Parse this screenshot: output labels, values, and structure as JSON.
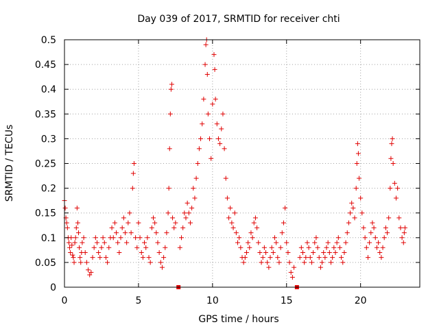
{
  "chart_data": {
    "type": "scatter",
    "title": "Day 039 of 2017, SRMTID for receiver chti",
    "xlabel": "GPS time / hours",
    "ylabel": "SRMTID / TECUs",
    "xlim": [
      0,
      24
    ],
    "ylim": [
      0,
      0.5
    ],
    "x_ticks": [
      0,
      5,
      10,
      15,
      20
    ],
    "x_tick_labels": [
      "0",
      "5",
      "10",
      "15",
      "20"
    ],
    "y_ticks": [
      0,
      0.05,
      0.1,
      0.15,
      0.2,
      0.25,
      0.3,
      0.35,
      0.4,
      0.45,
      0.5
    ],
    "y_tick_labels": [
      "0",
      "0.05",
      "0.1",
      "0.15",
      "0.2",
      "0.25",
      "0.3",
      "0.35",
      "0.4",
      "0.45",
      "0.5"
    ],
    "grid": true,
    "marker": "plus",
    "color": "#e00000",
    "gap_markers_x": [
      7.7,
      15.7
    ],
    "series": [
      {
        "name": "SRMTID",
        "points": [
          [
            0.0,
            0.175
          ],
          [
            0.05,
            0.16
          ],
          [
            0.1,
            0.14
          ],
          [
            0.15,
            0.13
          ],
          [
            0.2,
            0.12
          ],
          [
            0.25,
            0.1
          ],
          [
            0.3,
            0.09
          ],
          [
            0.35,
            0.08
          ],
          [
            0.4,
            0.07
          ],
          [
            0.45,
            0.1
          ],
          [
            0.5,
            0.085
          ],
          [
            0.55,
            0.065
          ],
          [
            0.6,
            0.06
          ],
          [
            0.65,
            0.05
          ],
          [
            0.7,
            0.09
          ],
          [
            0.75,
            0.1
          ],
          [
            0.8,
            0.12
          ],
          [
            0.85,
            0.16
          ],
          [
            0.9,
            0.13
          ],
          [
            0.95,
            0.11
          ],
          [
            1.0,
            0.08
          ],
          [
            1.05,
            0.06
          ],
          [
            1.1,
            0.05
          ],
          [
            1.15,
            0.07
          ],
          [
            1.2,
            0.09
          ],
          [
            1.3,
            0.1
          ],
          [
            1.4,
            0.07
          ],
          [
            1.5,
            0.05
          ],
          [
            1.6,
            0.035
          ],
          [
            1.7,
            0.025
          ],
          [
            1.8,
            0.03
          ],
          [
            1.9,
            0.06
          ],
          [
            2.0,
            0.08
          ],
          [
            2.1,
            0.1
          ],
          [
            2.2,
            0.09
          ],
          [
            2.3,
            0.07
          ],
          [
            2.4,
            0.06
          ],
          [
            2.5,
            0.08
          ],
          [
            2.6,
            0.1
          ],
          [
            2.7,
            0.09
          ],
          [
            2.8,
            0.06
          ],
          [
            2.9,
            0.05
          ],
          [
            3.0,
            0.08
          ],
          [
            3.1,
            0.1
          ],
          [
            3.2,
            0.12
          ],
          [
            3.3,
            0.1
          ],
          [
            3.4,
            0.13
          ],
          [
            3.5,
            0.11
          ],
          [
            3.6,
            0.09
          ],
          [
            3.7,
            0.07
          ],
          [
            3.8,
            0.1
          ],
          [
            3.9,
            0.12
          ],
          [
            4.0,
            0.14
          ],
          [
            4.1,
            0.11
          ],
          [
            4.2,
            0.09
          ],
          [
            4.3,
            0.13
          ],
          [
            4.4,
            0.15
          ],
          [
            4.5,
            0.11
          ],
          [
            4.6,
            0.2
          ],
          [
            4.65,
            0.23
          ],
          [
            4.7,
            0.25
          ],
          [
            4.8,
            0.1
          ],
          [
            4.9,
            0.08
          ],
          [
            5.0,
            0.13
          ],
          [
            5.1,
            0.1
          ],
          [
            5.2,
            0.07
          ],
          [
            5.3,
            0.06
          ],
          [
            5.4,
            0.09
          ],
          [
            5.5,
            0.08
          ],
          [
            5.6,
            0.1
          ],
          [
            5.7,
            0.06
          ],
          [
            5.8,
            0.05
          ],
          [
            5.9,
            0.12
          ],
          [
            6.0,
            0.14
          ],
          [
            6.1,
            0.13
          ],
          [
            6.2,
            0.11
          ],
          [
            6.3,
            0.09
          ],
          [
            6.4,
            0.07
          ],
          [
            6.5,
            0.05
          ],
          [
            6.6,
            0.04
          ],
          [
            6.7,
            0.06
          ],
          [
            6.8,
            0.08
          ],
          [
            6.9,
            0.11
          ],
          [
            7.0,
            0.15
          ],
          [
            7.05,
            0.2
          ],
          [
            7.1,
            0.28
          ],
          [
            7.15,
            0.35
          ],
          [
            7.2,
            0.4
          ],
          [
            7.25,
            0.41
          ],
          [
            7.3,
            0.14
          ],
          [
            7.4,
            0.12
          ],
          [
            7.5,
            0.13
          ],
          [
            7.8,
            0.08
          ],
          [
            7.9,
            0.1
          ],
          [
            8.0,
            0.12
          ],
          [
            8.1,
            0.15
          ],
          [
            8.2,
            0.14
          ],
          [
            8.3,
            0.17
          ],
          [
            8.4,
            0.15
          ],
          [
            8.5,
            0.13
          ],
          [
            8.6,
            0.16
          ],
          [
            8.7,
            0.2
          ],
          [
            8.8,
            0.18
          ],
          [
            8.9,
            0.22
          ],
          [
            9.0,
            0.25
          ],
          [
            9.1,
            0.28
          ],
          [
            9.2,
            0.3
          ],
          [
            9.3,
            0.33
          ],
          [
            9.4,
            0.38
          ],
          [
            9.5,
            0.45
          ],
          [
            9.55,
            0.49
          ],
          [
            9.6,
            0.5
          ],
          [
            9.65,
            0.43
          ],
          [
            9.7,
            0.35
          ],
          [
            9.8,
            0.3
          ],
          [
            9.9,
            0.26
          ],
          [
            10.0,
            0.37
          ],
          [
            10.1,
            0.47
          ],
          [
            10.15,
            0.44
          ],
          [
            10.2,
            0.38
          ],
          [
            10.3,
            0.33
          ],
          [
            10.4,
            0.3
          ],
          [
            10.5,
            0.29
          ],
          [
            10.6,
            0.32
          ],
          [
            10.7,
            0.35
          ],
          [
            10.8,
            0.28
          ],
          [
            10.9,
            0.22
          ],
          [
            11.0,
            0.18
          ],
          [
            11.1,
            0.14
          ],
          [
            11.2,
            0.16
          ],
          [
            11.3,
            0.13
          ],
          [
            11.4,
            0.12
          ],
          [
            11.5,
            0.15
          ],
          [
            11.6,
            0.11
          ],
          [
            11.7,
            0.09
          ],
          [
            11.8,
            0.1
          ],
          [
            11.9,
            0.08
          ],
          [
            12.0,
            0.06
          ],
          [
            12.1,
            0.05
          ],
          [
            12.2,
            0.06
          ],
          [
            12.3,
            0.07
          ],
          [
            12.4,
            0.09
          ],
          [
            12.5,
            0.08
          ],
          [
            12.6,
            0.11
          ],
          [
            12.7,
            0.1
          ],
          [
            12.8,
            0.13
          ],
          [
            12.9,
            0.14
          ],
          [
            13.0,
            0.12
          ],
          [
            13.1,
            0.09
          ],
          [
            13.2,
            0.07
          ],
          [
            13.3,
            0.05
          ],
          [
            13.4,
            0.06
          ],
          [
            13.5,
            0.08
          ],
          [
            13.6,
            0.07
          ],
          [
            13.7,
            0.05
          ],
          [
            13.8,
            0.04
          ],
          [
            13.9,
            0.06
          ],
          [
            14.0,
            0.08
          ],
          [
            14.1,
            0.07
          ],
          [
            14.2,
            0.1
          ],
          [
            14.3,
            0.09
          ],
          [
            14.4,
            0.06
          ],
          [
            14.5,
            0.05
          ],
          [
            14.6,
            0.08
          ],
          [
            14.7,
            0.11
          ],
          [
            14.8,
            0.13
          ],
          [
            14.9,
            0.16
          ],
          [
            15.0,
            0.09
          ],
          [
            15.1,
            0.07
          ],
          [
            15.2,
            0.05
          ],
          [
            15.3,
            0.03
          ],
          [
            15.4,
            0.02
          ],
          [
            15.5,
            0.04
          ],
          [
            15.9,
            0.06
          ],
          [
            16.0,
            0.08
          ],
          [
            16.1,
            0.07
          ],
          [
            16.2,
            0.05
          ],
          [
            16.3,
            0.06
          ],
          [
            16.4,
            0.09
          ],
          [
            16.5,
            0.08
          ],
          [
            16.6,
            0.06
          ],
          [
            16.7,
            0.05
          ],
          [
            16.8,
            0.07
          ],
          [
            16.9,
            0.09
          ],
          [
            17.0,
            0.1
          ],
          [
            17.1,
            0.08
          ],
          [
            17.2,
            0.06
          ],
          [
            17.3,
            0.04
          ],
          [
            17.4,
            0.05
          ],
          [
            17.5,
            0.07
          ],
          [
            17.6,
            0.06
          ],
          [
            17.7,
            0.08
          ],
          [
            17.8,
            0.09
          ],
          [
            17.9,
            0.07
          ],
          [
            18.0,
            0.05
          ],
          [
            18.1,
            0.06
          ],
          [
            18.2,
            0.08
          ],
          [
            18.3,
            0.07
          ],
          [
            18.4,
            0.09
          ],
          [
            18.5,
            0.1
          ],
          [
            18.6,
            0.08
          ],
          [
            18.7,
            0.06
          ],
          [
            18.8,
            0.05
          ],
          [
            18.9,
            0.07
          ],
          [
            19.0,
            0.09
          ],
          [
            19.1,
            0.11
          ],
          [
            19.2,
            0.13
          ],
          [
            19.3,
            0.15
          ],
          [
            19.4,
            0.17
          ],
          [
            19.5,
            0.16
          ],
          [
            19.6,
            0.14
          ],
          [
            19.7,
            0.2
          ],
          [
            19.75,
            0.25
          ],
          [
            19.8,
            0.29
          ],
          [
            19.85,
            0.27
          ],
          [
            19.9,
            0.22
          ],
          [
            20.0,
            0.18
          ],
          [
            20.1,
            0.15
          ],
          [
            20.2,
            0.12
          ],
          [
            20.3,
            0.1
          ],
          [
            20.4,
            0.08
          ],
          [
            20.5,
            0.06
          ],
          [
            20.6,
            0.09
          ],
          [
            20.7,
            0.11
          ],
          [
            20.8,
            0.13
          ],
          [
            20.9,
            0.12
          ],
          [
            21.0,
            0.1
          ],
          [
            21.1,
            0.08
          ],
          [
            21.2,
            0.09
          ],
          [
            21.3,
            0.07
          ],
          [
            21.4,
            0.06
          ],
          [
            21.5,
            0.08
          ],
          [
            21.6,
            0.1
          ],
          [
            21.7,
            0.12
          ],
          [
            21.8,
            0.11
          ],
          [
            21.9,
            0.14
          ],
          [
            22.0,
            0.2
          ],
          [
            22.05,
            0.26
          ],
          [
            22.1,
            0.29
          ],
          [
            22.15,
            0.3
          ],
          [
            22.2,
            0.25
          ],
          [
            22.3,
            0.21
          ],
          [
            22.4,
            0.18
          ],
          [
            22.5,
            0.2
          ],
          [
            22.6,
            0.14
          ],
          [
            22.7,
            0.12
          ],
          [
            22.8,
            0.1
          ],
          [
            22.9,
            0.09
          ],
          [
            22.95,
            0.11
          ],
          [
            23.0,
            0.12
          ]
        ]
      }
    ]
  }
}
